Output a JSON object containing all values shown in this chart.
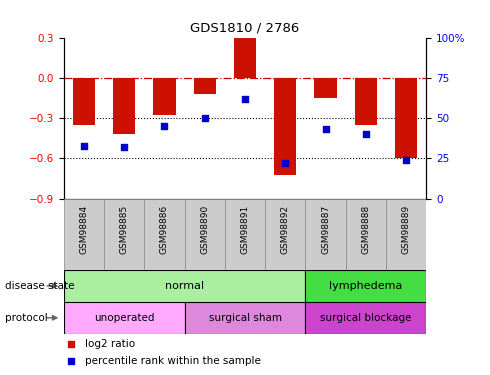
{
  "title": "GDS1810 / 2786",
  "samples": [
    "GSM98884",
    "GSM98885",
    "GSM98886",
    "GSM98890",
    "GSM98891",
    "GSM98892",
    "GSM98887",
    "GSM98888",
    "GSM98889"
  ],
  "log2_ratio": [
    -0.35,
    -0.42,
    -0.28,
    -0.12,
    0.3,
    -0.72,
    -0.15,
    -0.35,
    -0.6
  ],
  "percentile_rank": [
    33,
    32,
    45,
    50,
    62,
    22,
    43,
    40,
    24
  ],
  "ylim_left": [
    -0.9,
    0.3
  ],
  "ylim_right": [
    0,
    100
  ],
  "yticks_left": [
    -0.9,
    -0.6,
    -0.3,
    0.0,
    0.3
  ],
  "yticks_right": [
    0,
    25,
    50,
    75,
    100
  ],
  "disease_state": [
    {
      "label": "normal",
      "start": 0,
      "end": 6,
      "color": "#AAEEA0"
    },
    {
      "label": "lymphedema",
      "start": 6,
      "end": 9,
      "color": "#44DD44"
    }
  ],
  "protocol": [
    {
      "label": "unoperated",
      "start": 0,
      "end": 3,
      "color": "#FFAAFF"
    },
    {
      "label": "surgical sham",
      "start": 3,
      "end": 6,
      "color": "#DD88DD"
    },
    {
      "label": "surgical blockage",
      "start": 6,
      "end": 9,
      "color": "#CC44CC"
    }
  ],
  "bar_color": "#CC1100",
  "dot_color": "#0000CC",
  "zero_line_color": "#CC0000",
  "grid_line_color": "#000000",
  "label_row1": "disease state",
  "label_row2": "protocol",
  "legend_bar": "log2 ratio",
  "legend_dot": "percentile rank within the sample",
  "bg_color": "#FFFFFF",
  "xtick_bg": "#CCCCCC"
}
